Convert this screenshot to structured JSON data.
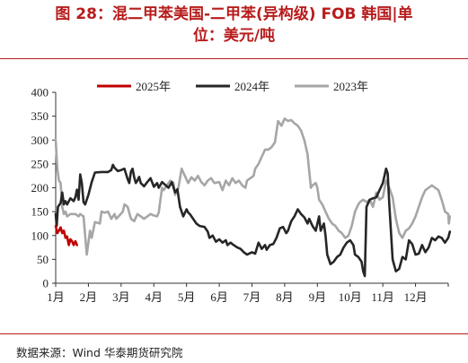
{
  "figure": {
    "title_line1": "图 28：混二甲苯美国-二甲苯(异构级) FOB 韩国|单",
    "title_line2": "位：美元/吨",
    "source": "数据来源：Wind 华泰期货研究院"
  },
  "colors": {
    "s2025": "#c00000",
    "s2024": "#262626",
    "s2023": "#a6a6a6",
    "accent": "#b71c1c"
  },
  "chart_data": {
    "type": "line",
    "title": "",
    "xlabel": "",
    "ylabel": "",
    "ylim": [
      0,
      400
    ],
    "yticks": [
      0,
      50,
      100,
      150,
      200,
      250,
      300,
      350,
      400
    ],
    "xticks": [
      "1月",
      "2月",
      "3月",
      "4月",
      "5月",
      "6月",
      "7月",
      "8月",
      "9月",
      "10月",
      "11月",
      "12月"
    ],
    "x_unit": "month position (1 = start of Jan, 13 = end of Dec)",
    "grid": false,
    "legend_position": "top",
    "series": [
      {
        "name": "2025年",
        "points": [
          [
            1.0,
            120
          ],
          [
            1.05,
            105
          ],
          [
            1.1,
            110
          ],
          [
            1.15,
            117
          ],
          [
            1.2,
            105
          ],
          [
            1.25,
            110
          ],
          [
            1.3,
            95
          ],
          [
            1.35,
            98
          ],
          [
            1.4,
            80
          ],
          [
            1.45,
            92
          ],
          [
            1.5,
            88
          ],
          [
            1.55,
            80
          ],
          [
            1.6,
            88
          ],
          [
            1.65,
            80
          ]
        ]
      },
      {
        "name": "2024年",
        "points": [
          [
            1.0,
            145
          ],
          [
            1.03,
            120
          ],
          [
            1.07,
            160
          ],
          [
            1.15,
            168
          ],
          [
            1.2,
            190
          ],
          [
            1.25,
            165
          ],
          [
            1.3,
            172
          ],
          [
            1.35,
            165
          ],
          [
            1.45,
            178
          ],
          [
            1.55,
            172
          ],
          [
            1.6,
            180
          ],
          [
            1.65,
            196
          ],
          [
            1.7,
            175
          ],
          [
            1.75,
            228
          ],
          [
            1.8,
            210
          ],
          [
            1.85,
            170
          ],
          [
            1.9,
            165
          ],
          [
            2.0,
            185
          ],
          [
            2.1,
            212
          ],
          [
            2.2,
            232
          ],
          [
            2.4,
            233
          ],
          [
            2.6,
            233
          ],
          [
            2.7,
            237
          ],
          [
            2.75,
            248
          ],
          [
            2.8,
            242
          ],
          [
            2.9,
            235
          ],
          [
            3.0,
            237
          ],
          [
            3.1,
            240
          ],
          [
            3.2,
            218
          ],
          [
            3.25,
            210
          ],
          [
            3.3,
            234
          ],
          [
            3.35,
            240
          ],
          [
            3.4,
            222
          ],
          [
            3.45,
            210
          ],
          [
            3.5,
            215
          ],
          [
            3.55,
            223
          ],
          [
            3.6,
            210
          ],
          [
            3.7,
            203
          ],
          [
            3.8,
            212
          ],
          [
            3.9,
            220
          ],
          [
            4.0,
            202
          ],
          [
            4.1,
            210
          ],
          [
            4.15,
            200
          ],
          [
            4.25,
            212
          ],
          [
            4.35,
            206
          ],
          [
            4.45,
            200
          ],
          [
            4.55,
            212
          ],
          [
            4.65,
            190
          ],
          [
            4.72,
            197
          ],
          [
            4.8,
            160
          ],
          [
            4.9,
            140
          ],
          [
            5.0,
            155
          ],
          [
            5.05,
            148
          ],
          [
            5.1,
            145
          ],
          [
            5.2,
            135
          ],
          [
            5.3,
            125
          ],
          [
            5.4,
            120
          ],
          [
            5.55,
            118
          ],
          [
            5.65,
            108
          ],
          [
            5.7,
            95
          ],
          [
            5.8,
            100
          ],
          [
            5.9,
            87
          ],
          [
            6.0,
            92
          ],
          [
            6.1,
            85
          ],
          [
            6.2,
            90
          ],
          [
            6.25,
            80
          ],
          [
            6.35,
            85
          ],
          [
            6.4,
            82
          ],
          [
            6.55,
            75
          ],
          [
            6.65,
            72
          ],
          [
            6.75,
            65
          ],
          [
            6.85,
            60
          ],
          [
            7.0,
            65
          ],
          [
            7.1,
            62
          ],
          [
            7.2,
            85
          ],
          [
            7.3,
            72
          ],
          [
            7.4,
            80
          ],
          [
            7.45,
            70
          ],
          [
            7.55,
            80
          ],
          [
            7.65,
            82
          ],
          [
            7.75,
            95
          ],
          [
            7.85,
            115
          ],
          [
            7.95,
            118
          ],
          [
            8.05,
            105
          ],
          [
            8.1,
            110
          ],
          [
            8.2,
            130
          ],
          [
            8.3,
            140
          ],
          [
            8.4,
            155
          ],
          [
            8.5,
            145
          ],
          [
            8.6,
            138
          ],
          [
            8.7,
            125
          ],
          [
            8.75,
            135
          ],
          [
            8.85,
            120
          ],
          [
            8.95,
            110
          ],
          [
            9.05,
            140
          ],
          [
            9.1,
            110
          ],
          [
            9.2,
            125
          ],
          [
            9.25,
            100
          ],
          [
            9.3,
            60
          ],
          [
            9.4,
            40
          ],
          [
            9.5,
            45
          ],
          [
            9.6,
            55
          ],
          [
            9.7,
            60
          ],
          [
            9.8,
            75
          ],
          [
            9.9,
            85
          ],
          [
            10.0,
            90
          ],
          [
            10.1,
            80
          ],
          [
            10.15,
            60
          ],
          [
            10.25,
            55
          ],
          [
            10.35,
            45
          ],
          [
            10.4,
            25
          ],
          [
            10.45,
            15
          ],
          [
            10.5,
            160
          ],
          [
            10.6,
            175
          ],
          [
            10.7,
            178
          ],
          [
            10.8,
            180
          ],
          [
            10.9,
            195
          ],
          [
            11.0,
            210
          ],
          [
            11.1,
            240
          ],
          [
            11.15,
            230
          ],
          [
            11.2,
            165
          ],
          [
            11.3,
            50
          ],
          [
            11.4,
            25
          ],
          [
            11.5,
            30
          ],
          [
            11.6,
            55
          ],
          [
            11.7,
            50
          ],
          [
            11.8,
            90
          ],
          [
            11.9,
            82
          ],
          [
            12.0,
            60
          ],
          [
            12.1,
            62
          ],
          [
            12.2,
            80
          ],
          [
            12.3,
            65
          ],
          [
            12.4,
            75
          ],
          [
            12.5,
            95
          ],
          [
            12.6,
            90
          ],
          [
            12.7,
            98
          ],
          [
            12.8,
            95
          ],
          [
            12.9,
            85
          ],
          [
            13.0,
            95
          ],
          [
            13.05,
            108
          ]
        ]
      },
      {
        "name": "2023年",
        "points": [
          [
            1.0,
            300
          ],
          [
            1.05,
            240
          ],
          [
            1.1,
            215
          ],
          [
            1.15,
            210
          ],
          [
            1.2,
            160
          ],
          [
            1.25,
            145
          ],
          [
            1.3,
            150
          ],
          [
            1.35,
            140
          ],
          [
            1.45,
            145
          ],
          [
            1.6,
            145
          ],
          [
            1.7,
            140
          ],
          [
            1.75,
            145
          ],
          [
            1.85,
            140
          ],
          [
            1.95,
            60
          ],
          [
            2.05,
            110
          ],
          [
            2.1,
            95
          ],
          [
            2.2,
            128
          ],
          [
            2.35,
            125
          ],
          [
            2.4,
            150
          ],
          [
            2.5,
            148
          ],
          [
            2.6,
            150
          ],
          [
            2.7,
            135
          ],
          [
            2.8,
            145
          ],
          [
            2.85,
            135
          ],
          [
            2.95,
            142
          ],
          [
            3.05,
            150
          ],
          [
            3.1,
            165
          ],
          [
            3.2,
            160
          ],
          [
            3.3,
            135
          ],
          [
            3.4,
            130
          ],
          [
            3.5,
            145
          ],
          [
            3.6,
            140
          ],
          [
            3.7,
            135
          ],
          [
            3.8,
            140
          ],
          [
            3.9,
            145
          ],
          [
            4.0,
            142
          ],
          [
            4.1,
            140
          ],
          [
            4.15,
            148
          ],
          [
            4.25,
            200
          ],
          [
            4.3,
            195
          ],
          [
            4.4,
            205
          ],
          [
            4.5,
            215
          ],
          [
            4.6,
            210
          ],
          [
            4.65,
            185
          ],
          [
            4.75,
            200
          ],
          [
            4.85,
            240
          ],
          [
            4.95,
            225
          ],
          [
            5.05,
            210
          ],
          [
            5.15,
            222
          ],
          [
            5.25,
            215
          ],
          [
            5.35,
            225
          ],
          [
            5.45,
            212
          ],
          [
            5.55,
            205
          ],
          [
            5.65,
            215
          ],
          [
            5.75,
            220
          ],
          [
            5.85,
            210
          ],
          [
            6.0,
            212
          ],
          [
            6.1,
            195
          ],
          [
            6.2,
            215
          ],
          [
            6.3,
            205
          ],
          [
            6.4,
            220
          ],
          [
            6.5,
            210
          ],
          [
            6.6,
            215
          ],
          [
            6.7,
            205
          ],
          [
            6.8,
            200
          ],
          [
            6.85,
            215
          ],
          [
            6.95,
            220
          ],
          [
            7.05,
            225
          ],
          [
            7.1,
            240
          ],
          [
            7.2,
            250
          ],
          [
            7.3,
            265
          ],
          [
            7.4,
            280
          ],
          [
            7.5,
            280
          ],
          [
            7.6,
            285
          ],
          [
            7.7,
            295
          ],
          [
            7.8,
            340
          ],
          [
            7.9,
            330
          ],
          [
            8.0,
            345
          ],
          [
            8.1,
            340
          ],
          [
            8.2,
            342
          ],
          [
            8.3,
            335
          ],
          [
            8.4,
            330
          ],
          [
            8.5,
            320
          ],
          [
            8.6,
            300
          ],
          [
            8.7,
            270
          ],
          [
            8.8,
            200
          ],
          [
            8.85,
            205
          ],
          [
            8.95,
            210
          ],
          [
            9.0,
            200
          ],
          [
            9.05,
            175
          ],
          [
            9.15,
            165
          ],
          [
            9.25,
            150
          ],
          [
            9.35,
            135
          ],
          [
            9.45,
            125
          ],
          [
            9.55,
            120
          ],
          [
            9.65,
            110
          ],
          [
            9.75,
            105
          ],
          [
            9.85,
            95
          ],
          [
            9.95,
            100
          ],
          [
            10.05,
            120
          ],
          [
            10.15,
            150
          ],
          [
            10.25,
            165
          ],
          [
            10.3,
            170
          ],
          [
            10.4,
            175
          ],
          [
            10.5,
            170
          ],
          [
            10.6,
            175
          ],
          [
            10.7,
            160
          ],
          [
            10.8,
            190
          ],
          [
            10.9,
            175
          ],
          [
            11.0,
            180
          ],
          [
            11.1,
            215
          ],
          [
            11.2,
            200
          ],
          [
            11.3,
            180
          ],
          [
            11.4,
            135
          ],
          [
            11.5,
            105
          ],
          [
            11.6,
            95
          ],
          [
            11.7,
            110
          ],
          [
            11.8,
            115
          ],
          [
            11.9,
            125
          ],
          [
            12.0,
            140
          ],
          [
            12.1,
            160
          ],
          [
            12.2,
            180
          ],
          [
            12.3,
            195
          ],
          [
            12.4,
            200
          ],
          [
            12.5,
            205
          ],
          [
            12.6,
            200
          ],
          [
            12.7,
            195
          ],
          [
            12.8,
            175
          ],
          [
            12.9,
            150
          ],
          [
            13.0,
            145
          ],
          [
            13.02,
            125
          ],
          [
            13.05,
            140
          ]
        ]
      }
    ]
  }
}
